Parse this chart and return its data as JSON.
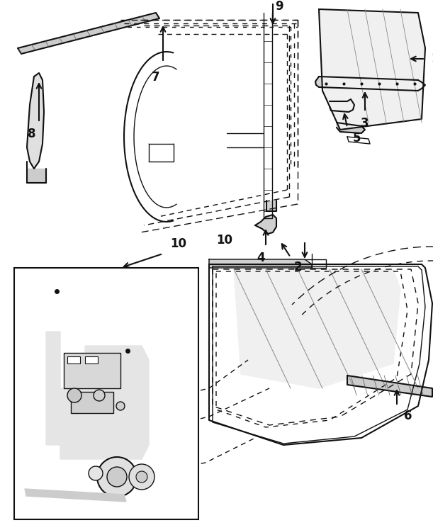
{
  "bg_color": "#ffffff",
  "line_color": "#111111",
  "label_color": "#000000",
  "fig_width": 6.11,
  "fig_height": 7.48,
  "dpi": 100
}
